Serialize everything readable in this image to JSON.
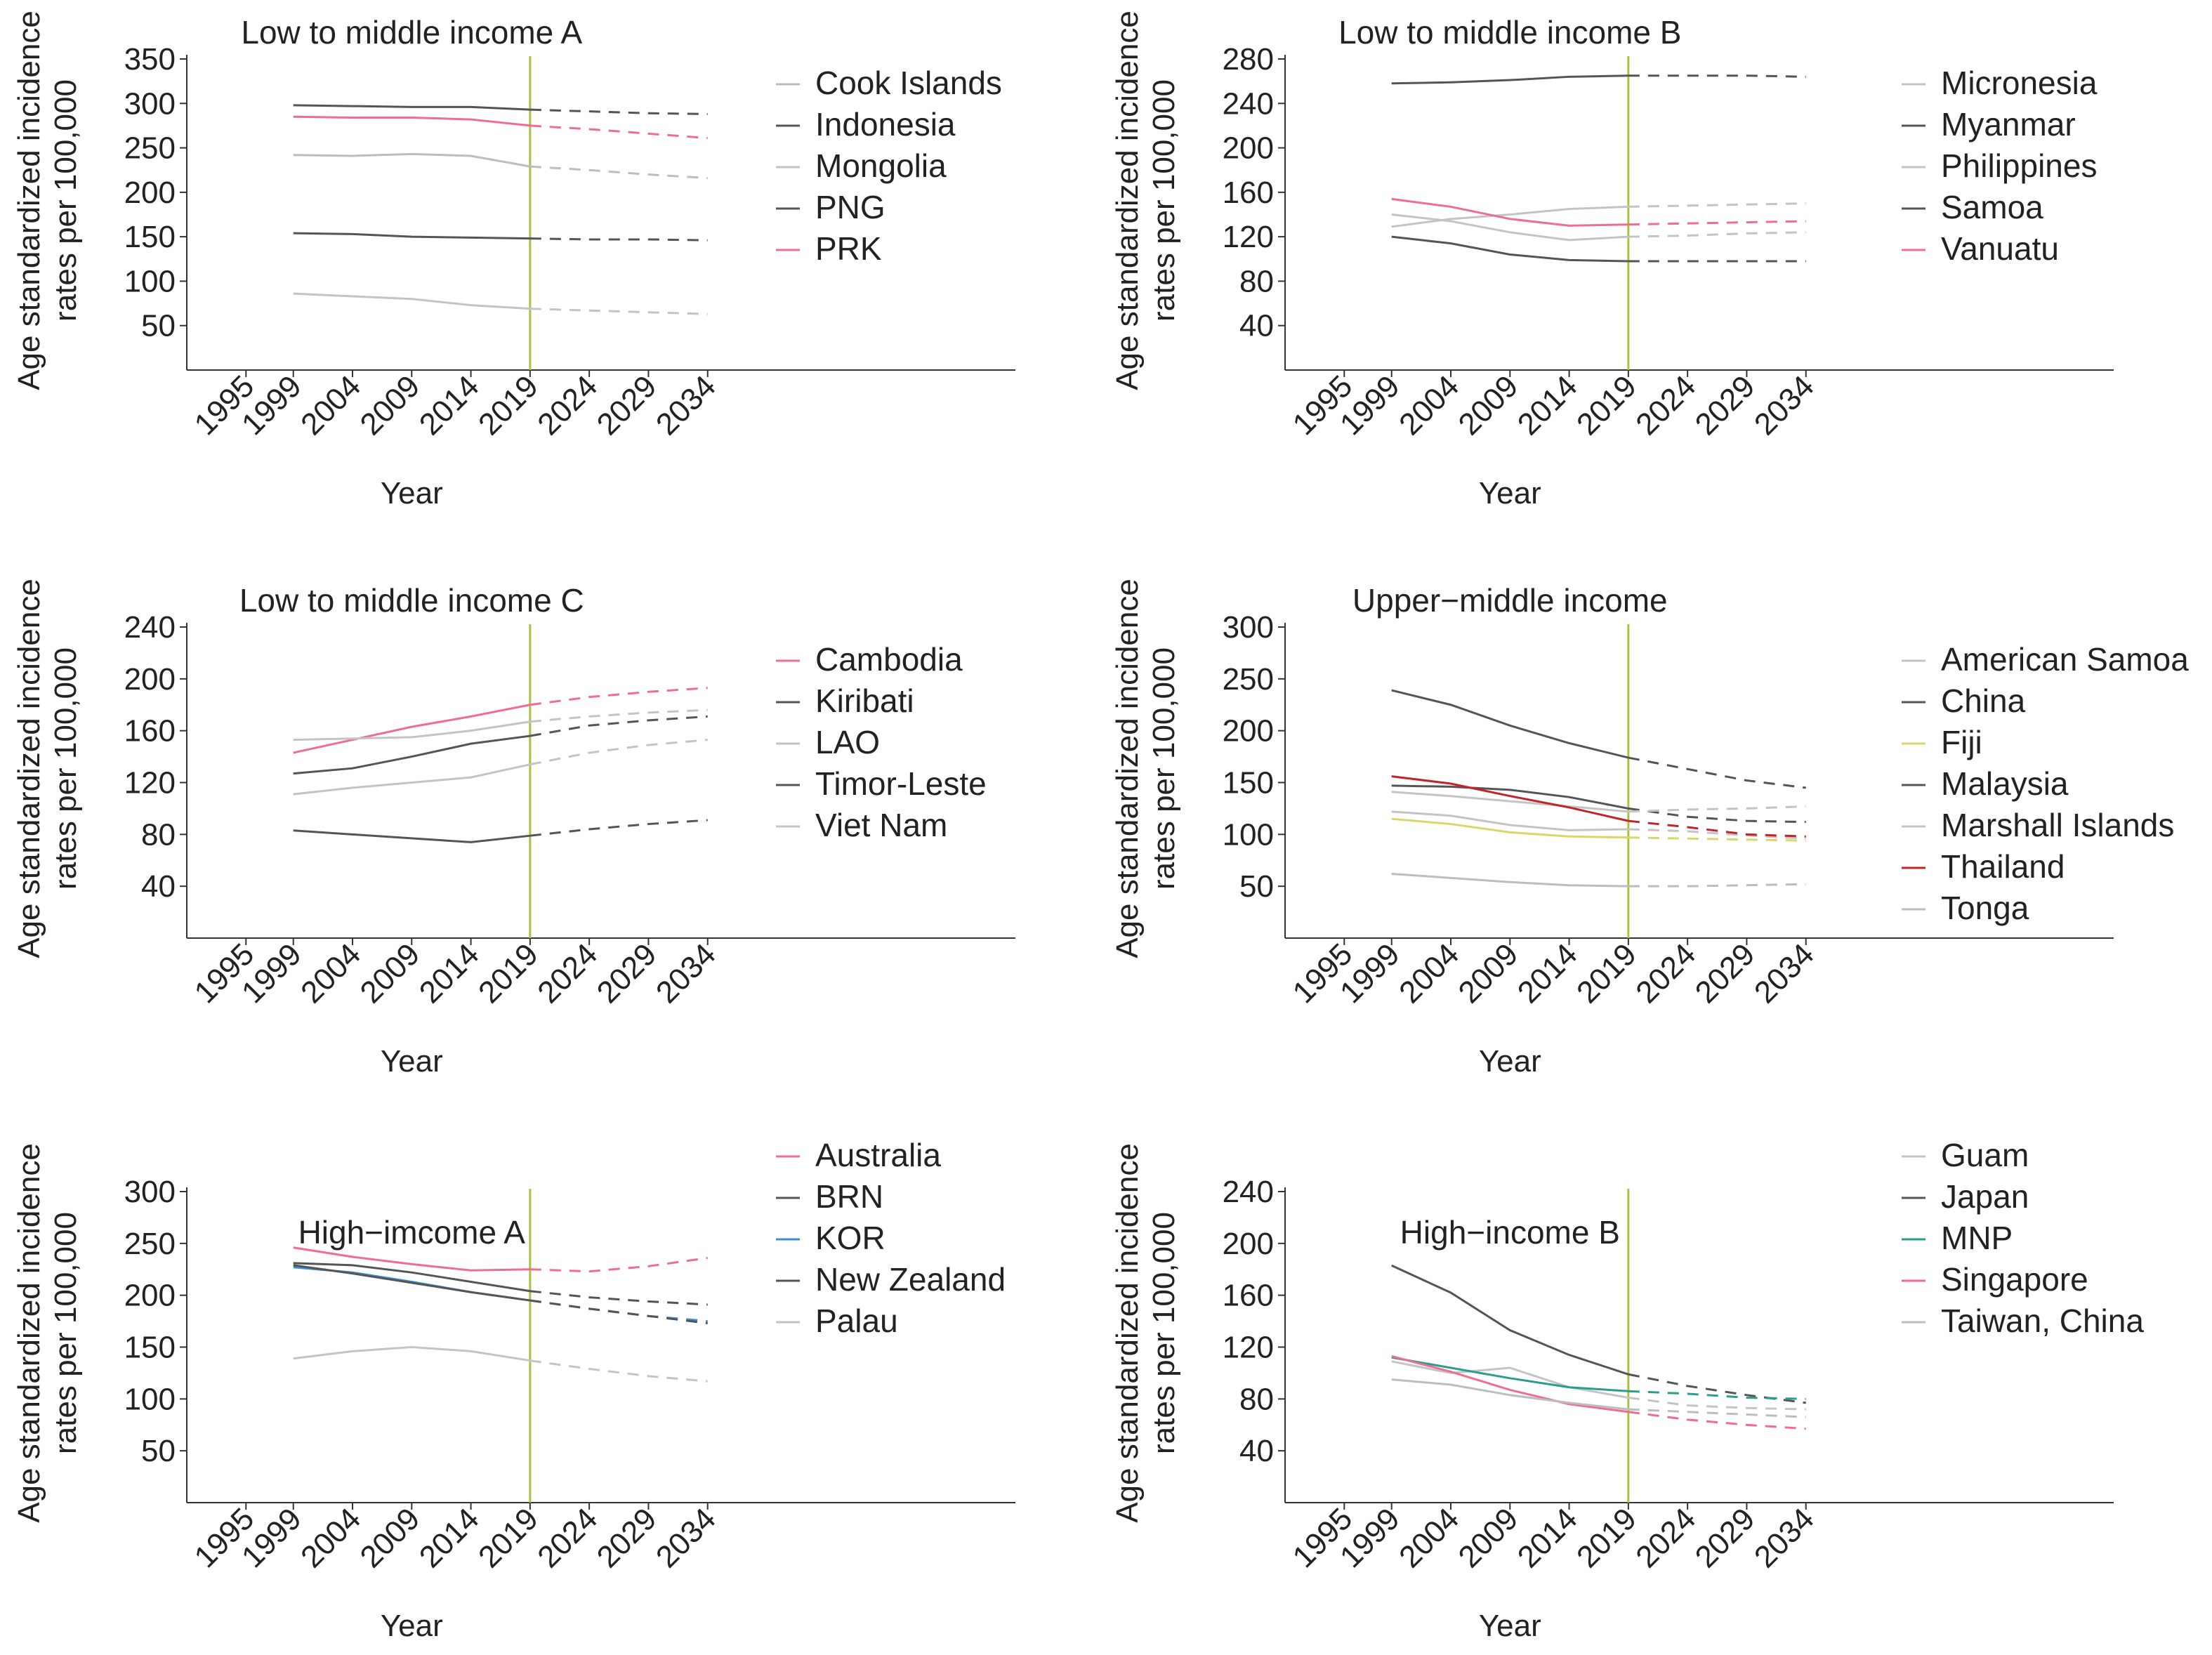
{
  "figure": {
    "colors": {
      "axis": "#333333",
      "forecast_line": "#a8c23c"
    },
    "x_ticks": [
      1995,
      1999,
      2004,
      2009,
      2014,
      2019,
      2024,
      2029,
      2034
    ]
  },
  "chart_data": [
    {
      "type": "line",
      "title": "Low to middle income A",
      "xlabel": "Year",
      "ylabel": [
        "Age standardized incidence",
        "rates per 100,000"
      ],
      "xlim": [
        1990,
        2060
      ],
      "ylim": [
        0,
        350
      ],
      "yticks": [
        50,
        100,
        150,
        200,
        250,
        300,
        350
      ],
      "x": [
        1999,
        2004,
        2009,
        2014,
        2019,
        2024,
        2029,
        2034
      ],
      "forecast_from": 2019,
      "series": [
        {
          "name": "Cook Islands",
          "color": "#bdbdbd",
          "values": [
            242,
            241,
            243,
            241,
            229,
            225,
            220,
            216
          ]
        },
        {
          "name": "Indonesia",
          "color": "#555555",
          "values": [
            298,
            297,
            296,
            296,
            293,
            291,
            289,
            288
          ]
        },
        {
          "name": "Mongolia",
          "color": "#c4c4c4",
          "values": [
            86,
            83,
            80,
            73,
            69,
            67,
            65,
            63
          ]
        },
        {
          "name": "PNG",
          "color": "#555555",
          "values": [
            154,
            153,
            150,
            149,
            148,
            147,
            147,
            146
          ]
        },
        {
          "name": "PRK",
          "color": "#ef6d8f",
          "values": [
            285,
            284,
            284,
            282,
            275,
            271,
            266,
            261
          ]
        }
      ]
    },
    {
      "type": "line",
      "title": "Low to middle income B",
      "xlabel": "Year",
      "ylabel": [
        "Age standardized incidence",
        "rates per 100,000"
      ],
      "xlim": [
        1990,
        2060
      ],
      "ylim": [
        0,
        280
      ],
      "yticks": [
        40,
        80,
        120,
        160,
        200,
        240,
        280
      ],
      "x": [
        1999,
        2004,
        2009,
        2014,
        2019,
        2024,
        2029,
        2034
      ],
      "forecast_from": 2019,
      "series": [
        {
          "name": "Micronesia",
          "color": "#c4c4c4",
          "values": [
            129,
            136,
            140,
            145,
            147,
            148,
            149,
            150
          ]
        },
        {
          "name": "Myanmar",
          "color": "#555555",
          "values": [
            258,
            259,
            261,
            264,
            265,
            265,
            265,
            264
          ]
        },
        {
          "name": "Philippines",
          "color": "#c4c4c4",
          "values": [
            140,
            134,
            124,
            117,
            120,
            121,
            123,
            124
          ]
        },
        {
          "name": "Samoa",
          "color": "#555555",
          "values": [
            120,
            114,
            104,
            99,
            98,
            98,
            98,
            98
          ]
        },
        {
          "name": "Vanuatu",
          "color": "#ef6d8f",
          "values": [
            154,
            147,
            136,
            130,
            131,
            132,
            133,
            134
          ]
        }
      ]
    },
    {
      "type": "line",
      "title": "Low to middle income C",
      "xlabel": "Year",
      "ylabel": [
        "Age standardized incidence",
        "rates per 100,000"
      ],
      "xlim": [
        1990,
        2060
      ],
      "ylim": [
        0,
        240
      ],
      "yticks": [
        40,
        80,
        120,
        160,
        200,
        240
      ],
      "x": [
        1999,
        2004,
        2009,
        2014,
        2019,
        2024,
        2029,
        2034
      ],
      "forecast_from": 2019,
      "series": [
        {
          "name": "Cambodia",
          "color": "#ef6d8f",
          "values": [
            143,
            153,
            163,
            171,
            180,
            186,
            190,
            193
          ]
        },
        {
          "name": "Kiribati",
          "color": "#555555",
          "values": [
            127,
            131,
            140,
            150,
            156,
            164,
            168,
            171
          ]
        },
        {
          "name": "LAO",
          "color": "#c4c4c4",
          "values": [
            153,
            154,
            155,
            160,
            167,
            171,
            174,
            176
          ]
        },
        {
          "name": "Timor-Leste",
          "color": "#555555",
          "values": [
            83,
            80,
            77,
            74,
            79,
            84,
            88,
            91
          ]
        },
        {
          "name": "Viet Nam",
          "color": "#c4c4c4",
          "values": [
            111,
            116,
            120,
            124,
            134,
            143,
            149,
            153
          ]
        }
      ]
    },
    {
      "type": "line",
      "title": "Upper−middle income",
      "xlabel": "Year",
      "ylabel": [
        "Age standardized incidence",
        "rates per 100,000"
      ],
      "xlim": [
        1990,
        2060
      ],
      "ylim": [
        0,
        300
      ],
      "yticks": [
        50,
        100,
        150,
        200,
        250,
        300
      ],
      "x": [
        1999,
        2004,
        2009,
        2014,
        2019,
        2024,
        2029,
        2034
      ],
      "forecast_from": 2019,
      "series": [
        {
          "name": "American Samoa",
          "color": "#c4c4c4",
          "values": [
            122,
            118,
            109,
            104,
            105,
            103,
            99,
            96
          ]
        },
        {
          "name": "China",
          "color": "#555555",
          "values": [
            239,
            225,
            205,
            188,
            174,
            163,
            152,
            145
          ]
        },
        {
          "name": "Fiji",
          "color": "#d8d86a",
          "values": [
            115,
            110,
            102,
            98,
            97,
            96,
            95,
            94
          ]
        },
        {
          "name": "Malaysia",
          "color": "#555555",
          "values": [
            147,
            146,
            143,
            136,
            125,
            117,
            113,
            112
          ]
        },
        {
          "name": "Marshall Islands",
          "color": "#c4c4c4",
          "values": [
            141,
            137,
            132,
            127,
            122,
            124,
            125,
            127
          ]
        },
        {
          "name": "Thailand",
          "color": "#c2242c",
          "values": [
            156,
            149,
            137,
            126,
            113,
            107,
            100,
            98
          ]
        },
        {
          "name": "Tonga",
          "color": "#bdbdbd",
          "values": [
            62,
            58,
            54,
            51,
            50,
            50,
            51,
            52
          ]
        }
      ]
    },
    {
      "type": "line",
      "title": "High−imcome A",
      "xlabel": "Year",
      "ylabel": [
        "Age standardized incidence",
        "rates per 100,000"
      ],
      "xlim": [
        1990,
        2060
      ],
      "ylim": [
        0,
        300
      ],
      "yticks": [
        50,
        100,
        150,
        200,
        250,
        300
      ],
      "x": [
        1999,
        2004,
        2009,
        2014,
        2019,
        2024,
        2029,
        2034
      ],
      "forecast_from": 2019,
      "series": [
        {
          "name": "Australia",
          "color": "#ef6d8f",
          "values": [
            246,
            237,
            230,
            224,
            225,
            223,
            228,
            236
          ]
        },
        {
          "name": "BRN",
          "color": "#555555",
          "values": [
            231,
            229,
            222,
            213,
            204,
            198,
            194,
            191
          ]
        },
        {
          "name": "KOR",
          "color": "#3a8fd8",
          "values": [
            227,
            222,
            213,
            203,
            195,
            187,
            180,
            175
          ]
        },
        {
          "name": "New Zealand",
          "color": "#555555",
          "values": [
            229,
            221,
            212,
            203,
            195,
            187,
            180,
            173
          ]
        },
        {
          "name": "Palau",
          "color": "#c4c4c4",
          "values": [
            139,
            146,
            150,
            146,
            137,
            129,
            122,
            117
          ]
        }
      ]
    },
    {
      "type": "line",
      "title": "High−income B",
      "xlabel": "Year",
      "ylabel": [
        "Age standardized incidence",
        "rates per 100,000"
      ],
      "xlim": [
        1990,
        2060
      ],
      "ylim": [
        0,
        240
      ],
      "yticks": [
        40,
        80,
        120,
        160,
        200,
        240
      ],
      "x": [
        1999,
        2004,
        2009,
        2014,
        2019,
        2024,
        2029,
        2034
      ],
      "forecast_from": 2019,
      "series": [
        {
          "name": "Guam",
          "color": "#c4c4c4",
          "values": [
            109,
            100,
            104,
            89,
            81,
            75,
            73,
            72
          ]
        },
        {
          "name": "Japan",
          "color": "#555555",
          "values": [
            183,
            162,
            133,
            114,
            99,
            90,
            83,
            77
          ]
        },
        {
          "name": "MNP",
          "color": "#2a9d8f",
          "values": [
            112,
            104,
            96,
            89,
            86,
            84,
            81,
            80
          ]
        },
        {
          "name": "Singapore",
          "color": "#ef6d8f",
          "values": [
            113,
            101,
            87,
            76,
            70,
            64,
            60,
            57
          ]
        },
        {
          "name": "Taiwan, China",
          "color": "#bdbdbd",
          "values": [
            95,
            91,
            83,
            77,
            72,
            70,
            68,
            66
          ]
        }
      ]
    }
  ]
}
